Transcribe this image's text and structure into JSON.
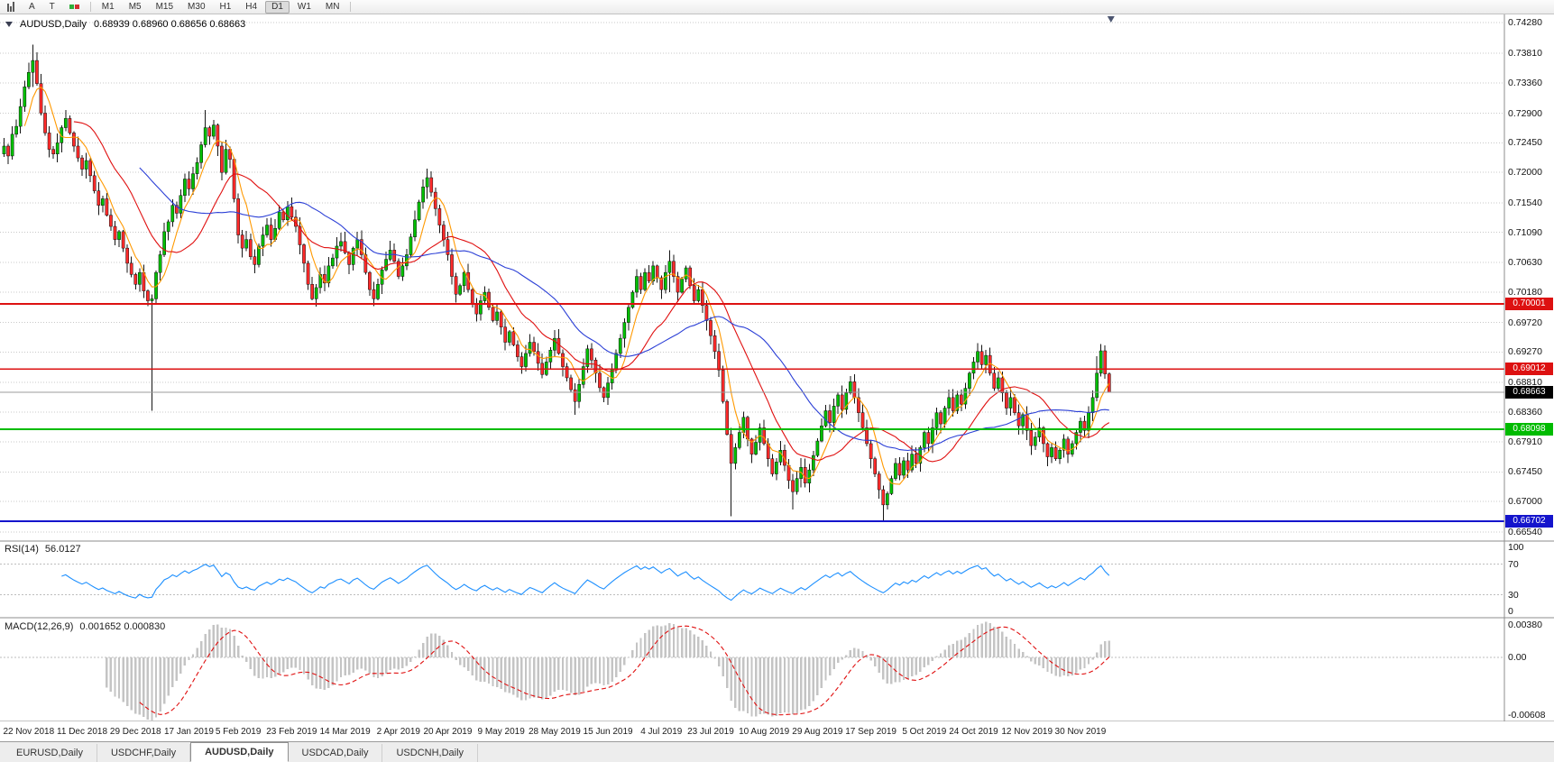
{
  "window": {
    "title_symbol": "AUDUSD,Daily",
    "title_ohlc": "0.68939 0.68960 0.68656 0.68663"
  },
  "toolbar": {
    "tools": [
      "A",
      "T"
    ],
    "icons": [
      "bar-chart-icon",
      "annotate-a-button",
      "text-t-button",
      "order-icon"
    ],
    "timeframes": [
      "M1",
      "M5",
      "M15",
      "M30",
      "H1",
      "H4",
      "D1",
      "W1",
      "MN"
    ],
    "active_timeframe": "D1"
  },
  "indicators": {
    "rsi_name": "RSI(14)",
    "rsi_value": "56.0127",
    "macd_name": "MACD(12,26,9)",
    "macd_values": "0.001652 0.000830"
  },
  "tabs": {
    "active_index": 2,
    "items": [
      "EURUSD,Daily",
      "USDCHF,Daily",
      "AUDUSD,Daily",
      "USDCAD,Daily",
      "USDCNH,Daily"
    ]
  },
  "chart_data": {
    "type": "candlestick",
    "symbol": "AUDUSD",
    "timeframe": "Daily",
    "last_ohlc": {
      "open": 0.68939,
      "high": 0.6896,
      "low": 0.68656,
      "close": 0.68663
    },
    "y_range": [
      0.664,
      0.744
    ],
    "up_color": "#00c000",
    "down_color": "#ff2a2a",
    "wick_color": "#151515",
    "grid_color": "#c8c8c8",
    "price_axis_labels": [
      "0.74280",
      "0.73810",
      "0.73360",
      "0.72900",
      "0.72450",
      "0.72000",
      "0.71540",
      "0.71090",
      "0.70630",
      "0.70180",
      "0.69720",
      "0.69270",
      "0.68810",
      "0.68360",
      "0.67910",
      "0.67450",
      "0.67000",
      "0.66540"
    ],
    "closes": [
      0.724,
      0.7225,
      0.7258,
      0.727,
      0.73,
      0.733,
      0.7352,
      0.737,
      0.7335,
      0.729,
      0.726,
      0.7235,
      0.7228,
      0.7245,
      0.7268,
      0.7282,
      0.726,
      0.724,
      0.7222,
      0.7205,
      0.7218,
      0.7195,
      0.7172,
      0.715,
      0.716,
      0.7135,
      0.7118,
      0.7098,
      0.711,
      0.7085,
      0.7062,
      0.7045,
      0.703,
      0.7048,
      0.702,
      0.7005,
      0.7008,
      0.7048,
      0.7075,
      0.711,
      0.7125,
      0.715,
      0.7138,
      0.7165,
      0.719,
      0.7175,
      0.7198,
      0.7215,
      0.7242,
      0.7268,
      0.7255,
      0.7272,
      0.724,
      0.72,
      0.7235,
      0.722,
      0.716,
      0.7105,
      0.7085,
      0.7098,
      0.7072,
      0.706,
      0.7088,
      0.7105,
      0.712,
      0.7098,
      0.7115,
      0.714,
      0.7128,
      0.7148,
      0.7132,
      0.7118,
      0.709,
      0.7062,
      0.703,
      0.7008,
      0.7025,
      0.7045,
      0.7032,
      0.7058,
      0.707,
      0.7088,
      0.7095,
      0.7078,
      0.706,
      0.7085,
      0.7098,
      0.7075,
      0.7048,
      0.7022,
      0.7008,
      0.703,
      0.7052,
      0.7068,
      0.7082,
      0.7065,
      0.7042,
      0.7058,
      0.7075,
      0.7102,
      0.7128,
      0.7155,
      0.7178,
      0.7192,
      0.717,
      0.7145,
      0.712,
      0.7098,
      0.7075,
      0.7042,
      0.7015,
      0.7028,
      0.7048,
      0.7022,
      0.7,
      0.6985,
      0.7005,
      0.7018,
      0.6995,
      0.6975,
      0.6988,
      0.6965,
      0.6942,
      0.6958,
      0.6938,
      0.692,
      0.6905,
      0.6925,
      0.6942,
      0.6928,
      0.691,
      0.6893,
      0.6912,
      0.693,
      0.6948,
      0.6925,
      0.6905,
      0.6888,
      0.687,
      0.6852,
      0.6878,
      0.6905,
      0.6932,
      0.6915,
      0.6895,
      0.6873,
      0.6858,
      0.688,
      0.6902,
      0.6925,
      0.6948,
      0.6972,
      0.6995,
      0.7018,
      0.7042,
      0.7022,
      0.7048,
      0.7035,
      0.7058,
      0.704,
      0.7022,
      0.7048,
      0.7065,
      0.7042,
      0.7018,
      0.7038,
      0.7055,
      0.7028,
      0.7005,
      0.7022,
      0.6998,
      0.6975,
      0.6952,
      0.6928,
      0.69,
      0.6852,
      0.6802,
      0.6758,
      0.6782,
      0.6805,
      0.6828,
      0.6795,
      0.6772,
      0.679,
      0.6812,
      0.6788,
      0.6765,
      0.6742,
      0.676,
      0.6778,
      0.6755,
      0.6732,
      0.6715,
      0.6735,
      0.6752,
      0.6728,
      0.6748,
      0.677,
      0.6792,
      0.6815,
      0.6838,
      0.682,
      0.6845,
      0.6862,
      0.684,
      0.6865,
      0.6882,
      0.6858,
      0.6835,
      0.6812,
      0.6788,
      0.6765,
      0.6742,
      0.6718,
      0.6695,
      0.6712,
      0.6735,
      0.6758,
      0.674,
      0.6762,
      0.6748,
      0.6772,
      0.6758,
      0.6782,
      0.6805,
      0.6788,
      0.6812,
      0.6835,
      0.6818,
      0.6842,
      0.6858,
      0.6838,
      0.6862,
      0.6848,
      0.6872,
      0.6895,
      0.6912,
      0.6928,
      0.6908,
      0.6922,
      0.6895,
      0.6872,
      0.6888,
      0.6865,
      0.6842,
      0.6858,
      0.6835,
      0.6815,
      0.6832,
      0.6808,
      0.6785,
      0.6798,
      0.6812,
      0.6788,
      0.6768,
      0.6782,
      0.6765,
      0.6778,
      0.6795,
      0.6772,
      0.6788,
      0.6805,
      0.6822,
      0.6808,
      0.6835,
      0.6858,
      0.6895,
      0.6929,
      0.68939,
      0.68663
    ],
    "wick_overrides": {
      "7": [
        0.7394,
        0.733
      ],
      "36": [
        0.7015,
        0.6838
      ],
      "49": [
        0.7295,
        0.7238
      ],
      "103": [
        0.7206,
        0.716
      ],
      "139": [
        0.688,
        0.6832
      ],
      "162": [
        0.7082,
        0.7018
      ],
      "177": [
        0.6812,
        0.6678
      ],
      "192": [
        0.6742,
        0.6688
      ],
      "214": [
        0.6724,
        0.667
      ],
      "237": [
        0.6941,
        0.6902
      ],
      "254": [
        0.679,
        0.6754
      ],
      "266": [
        0.6921,
        0.6852
      ],
      "267": [
        0.6939,
        0.689
      ],
      "269": [
        0.6896,
        0.68656
      ]
    },
    "x_labels": [
      {
        "i": 6,
        "label": "22 Nov 2018"
      },
      {
        "i": 19,
        "label": "11 Dec 2018"
      },
      {
        "i": 32,
        "label": "29 Dec 2018"
      },
      {
        "i": 45,
        "label": "17 Jan 2019"
      },
      {
        "i": 57,
        "label": "5 Feb 2019"
      },
      {
        "i": 70,
        "label": "23 Feb 2019"
      },
      {
        "i": 83,
        "label": "14 Mar 2019"
      },
      {
        "i": 96,
        "label": "2 Apr 2019"
      },
      {
        "i": 108,
        "label": "20 Apr 2019"
      },
      {
        "i": 121,
        "label": "9 May 2019"
      },
      {
        "i": 134,
        "label": "28 May 2019"
      },
      {
        "i": 147,
        "label": "15 Jun 2019"
      },
      {
        "i": 160,
        "label": "4 Jul 2019"
      },
      {
        "i": 172,
        "label": "23 Jul 2019"
      },
      {
        "i": 185,
        "label": "10 Aug 2019"
      },
      {
        "i": 198,
        "label": "29 Aug 2019"
      },
      {
        "i": 211,
        "label": "17 Sep 2019"
      },
      {
        "i": 224,
        "label": "5 Oct 2019"
      },
      {
        "i": 236,
        "label": "24 Oct 2019"
      },
      {
        "i": 249,
        "label": "12 Nov 2019"
      },
      {
        "i": 262,
        "label": "30 Nov 2019"
      }
    ],
    "levels": [
      {
        "price": 0.70001,
        "label": "0.70001",
        "color": "#dd1111"
      },
      {
        "price": 0.69012,
        "label": "0.69012",
        "color": "#dd1111"
      },
      {
        "price": 0.68098,
        "label": "0.68098",
        "color": "#00bb00"
      },
      {
        "price": 0.66702,
        "label": "0.66702",
        "color": "#1414cc"
      }
    ],
    "current_price": {
      "price": 0.68663,
      "label": "0.68663",
      "badge_color": "#000000",
      "line_color": "#9b9b9b"
    },
    "moving_averages": [
      {
        "period": 6,
        "color": "#ff9900"
      },
      {
        "period": 18,
        "color": "#e01010"
      },
      {
        "period": 34,
        "color": "#2b3fd6"
      }
    ],
    "rsi": {
      "period": 14,
      "color": "#1e90ff",
      "levels": [
        70,
        30
      ],
      "axis_labels": [
        "100",
        "70",
        "30",
        "0"
      ],
      "range": [
        0,
        100
      ]
    },
    "macd": {
      "fast": 12,
      "slow": 26,
      "signal": 9,
      "histogram_color": "#c4c4c4",
      "signal_color": "#e01010",
      "axis_labels": [
        "0.00380",
        "0.00",
        "-0.00608"
      ],
      "range": [
        -0.00608,
        0.0038
      ]
    }
  }
}
